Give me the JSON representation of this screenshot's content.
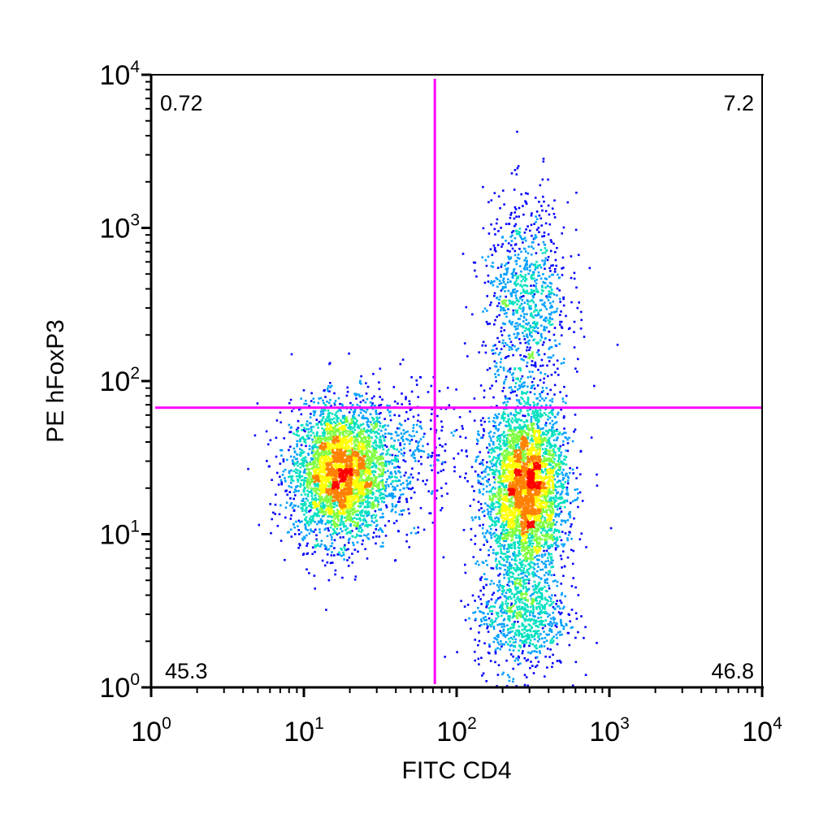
{
  "chart_data": {
    "type": "scatter",
    "subtype": "flow-cytometry density dot plot",
    "xlabel": "FITC CD4",
    "ylabel": "PE hFoxP3",
    "x_scale": "log",
    "y_scale": "log",
    "xlim": [
      1,
      10000
    ],
    "ylim": [
      1,
      10000
    ],
    "x_ticks": [
      {
        "base": "10",
        "exp": "0"
      },
      {
        "base": "10",
        "exp": "1"
      },
      {
        "base": "10",
        "exp": "2"
      },
      {
        "base": "10",
        "exp": "3"
      },
      {
        "base": "10",
        "exp": "4"
      }
    ],
    "y_ticks": [
      {
        "base": "10",
        "exp": "0"
      },
      {
        "base": "10",
        "exp": "1"
      },
      {
        "base": "10",
        "exp": "2"
      },
      {
        "base": "10",
        "exp": "3"
      },
      {
        "base": "10",
        "exp": "4"
      }
    ],
    "grid": false,
    "gate": {
      "x": 72,
      "y": 67,
      "color": "#ff00ff"
    },
    "quadrants": {
      "upper_left": "0.72",
      "upper_right": "7.2",
      "lower_left": "45.3",
      "lower_right": "46.8"
    },
    "populations": [
      {
        "cx": 17,
        "cy": 25,
        "x_spread": 0.16,
        "y_spread": 0.22,
        "weight": 0.36
      },
      {
        "cx": 280,
        "cy": 20,
        "x_spread": 0.13,
        "y_spread": 0.28,
        "weight": 0.4
      },
      {
        "cx": 260,
        "cy": 3,
        "x_spread": 0.15,
        "y_spread": 0.18,
        "weight": 0.09
      },
      {
        "cx": 280,
        "cy": 350,
        "x_spread": 0.14,
        "y_spread": 0.33,
        "weight": 0.1
      },
      {
        "cx": 40,
        "cy": 35,
        "x_spread": 0.22,
        "y_spread": 0.22,
        "weight": 0.05
      }
    ],
    "density_colors": [
      "#0000ff",
      "#00a0ff",
      "#00e0c0",
      "#80ff40",
      "#ffff00",
      "#ff8000",
      "#ff0000"
    ]
  }
}
